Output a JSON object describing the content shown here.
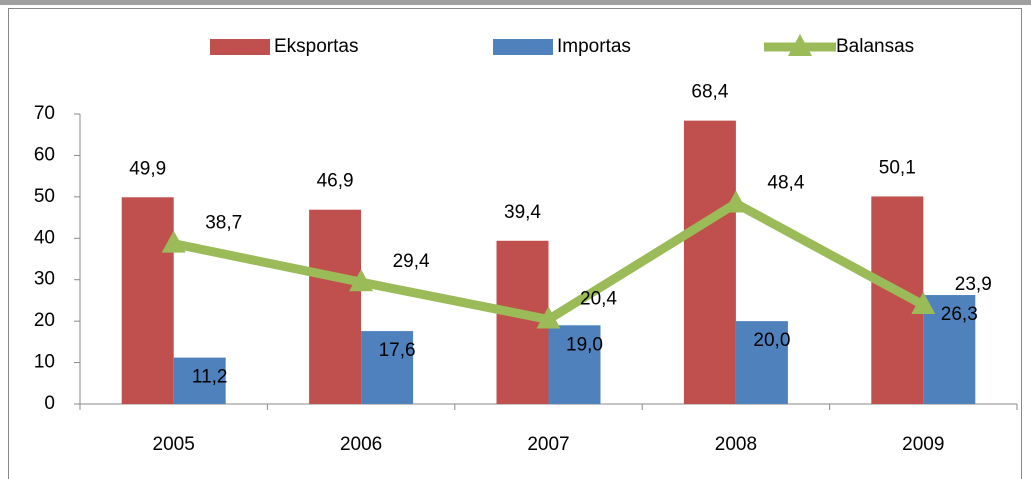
{
  "chart_data": {
    "type": "bar",
    "categories": [
      "2005",
      "2006",
      "2007",
      "2008",
      "2009"
    ],
    "series": [
      {
        "name": "Eksportas",
        "color": "#c0504d",
        "values": [
          49.9,
          46.9,
          39.4,
          68.4,
          50.1
        ],
        "value_labels": [
          "49,9",
          "46,9",
          "39,4",
          "68,4",
          "50,1"
        ]
      },
      {
        "name": "Importas",
        "color": "#4f81bd",
        "values": [
          11.2,
          17.6,
          19.0,
          20.0,
          26.3
        ],
        "value_labels": [
          "11,2",
          "17,6",
          "19,0",
          "20,0",
          "26,3"
        ]
      },
      {
        "name": "Balansas",
        "color": "#9bbb59",
        "type": "line",
        "values": [
          38.7,
          29.4,
          20.4,
          48.4,
          23.9
        ],
        "value_labels": [
          "38,7",
          "29,4",
          "20,4",
          "48,4",
          "23,9"
        ]
      }
    ],
    "ylim": [
      0,
      70
    ],
    "yticks": [
      0,
      10,
      20,
      30,
      40,
      50,
      60,
      70
    ],
    "legend": "top"
  }
}
